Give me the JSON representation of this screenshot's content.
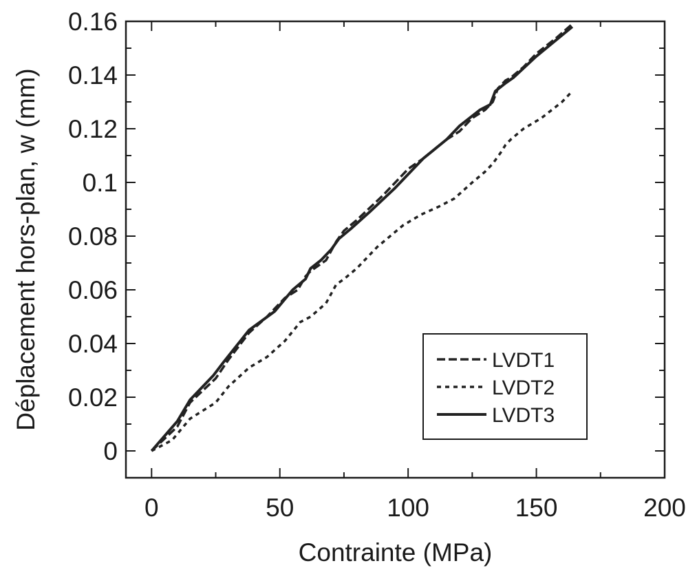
{
  "chart_data": {
    "type": "line",
    "xlabel": "Contrainte (MPa)",
    "ylabel": "Déplacement hors-plan, w (mm)",
    "xlim": [
      -10,
      200
    ],
    "ylim": [
      -0.01,
      0.16
    ],
    "xticks": [
      0,
      50,
      100,
      150,
      200
    ],
    "xtick_labels": [
      "0",
      "50",
      "100",
      "150",
      "200"
    ],
    "yticks": [
      0,
      0.02,
      0.04,
      0.06,
      0.08,
      0.1,
      0.12,
      0.14,
      0.16
    ],
    "ytick_labels": [
      "0",
      "0.02",
      "0.04",
      "0.06",
      "0.08",
      "0.1",
      "0.12",
      "0.14",
      "0.16"
    ],
    "grid": false,
    "legend_position": "bottom-right",
    "series": [
      {
        "name": "LVDT1",
        "style": "dashed",
        "color": "#222222",
        "x": [
          0,
          10,
          15,
          25,
          30,
          38,
          45,
          52,
          57,
          60,
          62,
          65,
          68,
          72,
          75,
          80,
          90,
          97,
          100,
          106,
          115,
          120,
          125,
          130,
          133,
          135,
          138,
          140,
          145,
          150,
          158,
          164
        ],
        "y": [
          0,
          0.009,
          0.018,
          0.027,
          0.034,
          0.044,
          0.05,
          0.057,
          0.06,
          0.065,
          0.067,
          0.069,
          0.071,
          0.078,
          0.082,
          0.086,
          0.095,
          0.102,
          0.105,
          0.109,
          0.116,
          0.119,
          0.124,
          0.127,
          0.13,
          0.135,
          0.138,
          0.139,
          0.143,
          0.148,
          0.154,
          0.159
        ]
      },
      {
        "name": "LVDT2",
        "style": "dotted",
        "color": "#222222",
        "x": [
          0,
          8,
          15,
          25,
          30,
          38,
          45,
          52,
          58,
          62,
          68,
          72,
          75,
          80,
          88,
          98,
          105,
          112,
          118,
          125,
          130,
          133,
          136,
          138,
          140,
          145,
          152,
          160,
          164
        ],
        "y": [
          0,
          0.004,
          0.012,
          0.018,
          0.024,
          0.031,
          0.035,
          0.041,
          0.048,
          0.05,
          0.055,
          0.062,
          0.064,
          0.068,
          0.076,
          0.084,
          0.088,
          0.091,
          0.094,
          0.1,
          0.104,
          0.107,
          0.111,
          0.114,
          0.116,
          0.12,
          0.124,
          0.13,
          0.134
        ]
      },
      {
        "name": "LVDT3",
        "style": "solid",
        "color": "#222222",
        "x": [
          0,
          10,
          15,
          24,
          28,
          38,
          48,
          55,
          60,
          62,
          66,
          70,
          73,
          78,
          85,
          95,
          100,
          106,
          115,
          120,
          128,
          132,
          134,
          138,
          141,
          150,
          164
        ],
        "y": [
          0,
          0.011,
          0.019,
          0.028,
          0.033,
          0.045,
          0.052,
          0.06,
          0.064,
          0.068,
          0.071,
          0.075,
          0.079,
          0.083,
          0.089,
          0.098,
          0.103,
          0.109,
          0.116,
          0.121,
          0.127,
          0.129,
          0.134,
          0.137,
          0.139,
          0.147,
          0.158
        ]
      }
    ]
  }
}
